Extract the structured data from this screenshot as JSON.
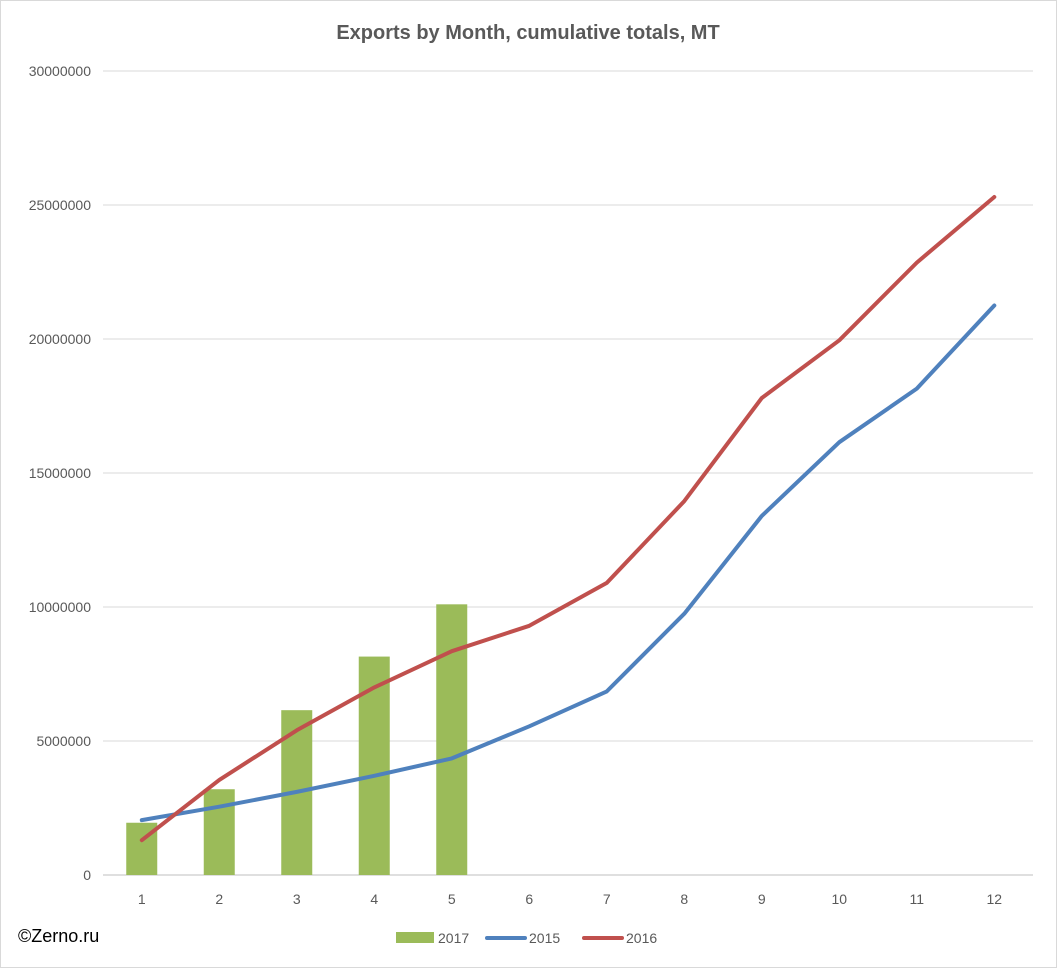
{
  "chart_data": {
    "type": "bar",
    "title": "Exports by Month, cumulative totals, MT",
    "categories": [
      "1",
      "2",
      "3",
      "4",
      "5",
      "6",
      "7",
      "8",
      "9",
      "10",
      "11",
      "12"
    ],
    "ylim": [
      0,
      30000000
    ],
    "yticks": [
      "0",
      "5000000",
      "10000000",
      "15000000",
      "20000000",
      "25000000",
      "30000000"
    ],
    "grid": true,
    "legend_position": "bottom",
    "series": [
      {
        "name": "2017",
        "type": "bar",
        "color": "#9bbb59",
        "values": [
          1950000,
          3200000,
          6150000,
          8150000,
          10100000,
          null,
          null,
          null,
          null,
          null,
          null,
          null
        ]
      },
      {
        "name": "2015",
        "type": "line",
        "color": "#4f81bd",
        "values": [
          2050000,
          2550000,
          3100000,
          3700000,
          4350000,
          5550000,
          6850000,
          9750000,
          13400000,
          16150000,
          18150000,
          21250000
        ]
      },
      {
        "name": "2016",
        "type": "line",
        "color": "#c0504d",
        "values": [
          1300000,
          3550000,
          5400000,
          7000000,
          8350000,
          9300000,
          10900000,
          13950000,
          17800000,
          19950000,
          22850000,
          25300000
        ]
      }
    ]
  },
  "watermark": "©Zerno.ru"
}
